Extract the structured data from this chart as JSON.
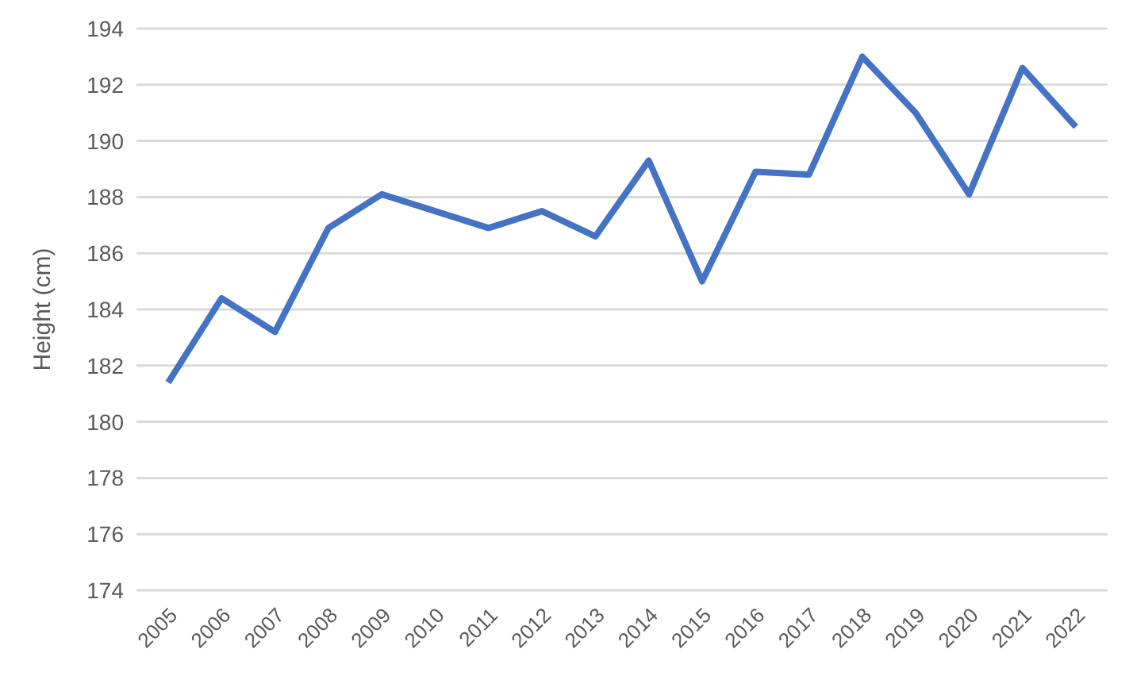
{
  "chart_data": {
    "type": "line",
    "ylabel": "Height (cm)",
    "categories": [
      "2005",
      "2006",
      "2007",
      "2008",
      "2009",
      "2010",
      "2011",
      "2012",
      "2013",
      "2014",
      "2015",
      "2016",
      "2017",
      "2018",
      "2019",
      "2020",
      "2021",
      "2022"
    ],
    "series": [
      {
        "color": "#4472c4",
        "values": [
          181.4,
          184.4,
          183.2,
          186.9,
          188.1,
          187.5,
          186.9,
          187.5,
          186.6,
          189.3,
          185.0,
          188.9,
          188.8,
          193.0,
          191.0,
          188.1,
          192.6,
          190.5
        ]
      }
    ],
    "ylim": [
      174,
      194
    ],
    "yticks": [
      174,
      176,
      178,
      180,
      182,
      184,
      186,
      188,
      190,
      192,
      194
    ],
    "grid": "y",
    "marker": "none",
    "line_style": "solid",
    "legend": false
  }
}
